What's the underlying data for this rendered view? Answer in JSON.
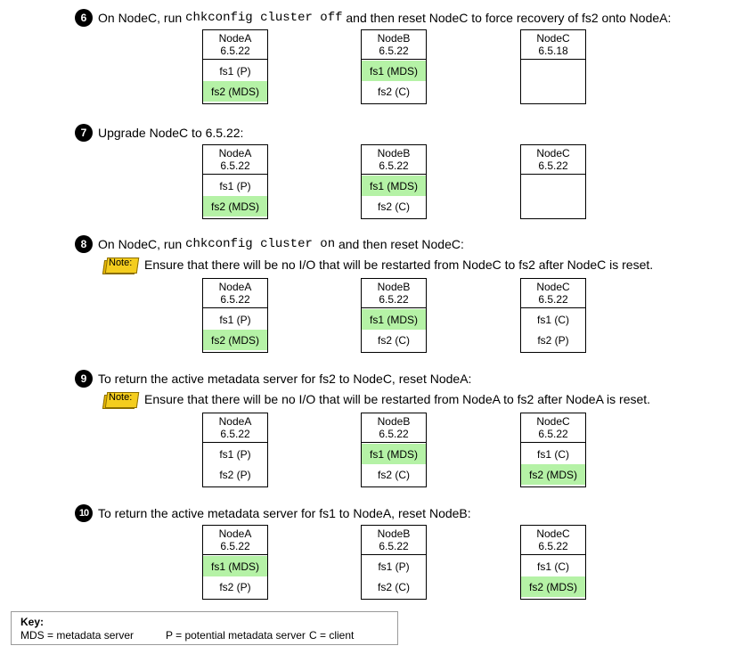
{
  "steps": [
    {
      "number": "6",
      "text_before": "On NodeC, run ",
      "command": "chkconfig cluster off",
      "text_after": " and then reset NodeC to force recovery of fs2 onto NodeA:",
      "note": "",
      "nodes": [
        {
          "name": "NodeA",
          "version": "6.5.22",
          "fs": [
            {
              "label": "fs1 (P)",
              "mds": false
            },
            {
              "label": "fs2 (MDS)",
              "mds": true
            }
          ]
        },
        {
          "name": "NodeB",
          "version": "6.5.22",
          "fs": [
            {
              "label": "fs1 (MDS)",
              "mds": true
            },
            {
              "label": "fs2 (C)",
              "mds": false
            }
          ]
        },
        {
          "name": "NodeC",
          "version": "6.5.18",
          "fs": []
        }
      ]
    },
    {
      "number": "7",
      "text_before": "Upgrade NodeC to 6.5.22:",
      "command": "",
      "text_after": "",
      "note": "",
      "nodes": [
        {
          "name": "NodeA",
          "version": "6.5.22",
          "fs": [
            {
              "label": "fs1 (P)",
              "mds": false
            },
            {
              "label": "fs2 (MDS)",
              "mds": true
            }
          ]
        },
        {
          "name": "NodeB",
          "version": "6.5.22",
          "fs": [
            {
              "label": "fs1 (MDS)",
              "mds": true
            },
            {
              "label": "fs2 (C)",
              "mds": false
            }
          ]
        },
        {
          "name": "NodeC",
          "version": "6.5.22",
          "fs": []
        }
      ]
    },
    {
      "number": "8",
      "text_before": "On NodeC, run ",
      "command": "chkconfig cluster on",
      "text_after": " and then reset NodeC:",
      "note_label": "Note:",
      "note": "Ensure that there will be no I/O that will be restarted from NodeC to fs2 after NodeC is reset.",
      "nodes": [
        {
          "name": "NodeA",
          "version": "6.5.22",
          "fs": [
            {
              "label": "fs1 (P)",
              "mds": false
            },
            {
              "label": "fs2 (MDS)",
              "mds": true
            }
          ]
        },
        {
          "name": "NodeB",
          "version": "6.5.22",
          "fs": [
            {
              "label": "fs1 (MDS)",
              "mds": true
            },
            {
              "label": "fs2 (C)",
              "mds": false
            }
          ]
        },
        {
          "name": "NodeC",
          "version": "6.5.22",
          "fs": [
            {
              "label": "fs1 (C)",
              "mds": false
            },
            {
              "label": "fs2 (P)",
              "mds": false
            }
          ]
        }
      ]
    },
    {
      "number": "9",
      "text_before": "To return the active metadata server for fs2 to NodeC, reset NodeA:",
      "command": "",
      "text_after": "",
      "note_label": "Note:",
      "note": "Ensure that there will be no I/O that will be restarted from NodeA to fs2 after NodeA is reset.",
      "nodes": [
        {
          "name": "NodeA",
          "version": "6.5.22",
          "fs": [
            {
              "label": "fs1 (P)",
              "mds": false
            },
            {
              "label": "fs2 (P)",
              "mds": false
            }
          ]
        },
        {
          "name": "NodeB",
          "version": "6.5.22",
          "fs": [
            {
              "label": "fs1 (MDS)",
              "mds": true
            },
            {
              "label": "fs2 (C)",
              "mds": false
            }
          ]
        },
        {
          "name": "NodeC",
          "version": "6.5.22",
          "fs": [
            {
              "label": "fs1 (C)",
              "mds": false
            },
            {
              "label": "fs2 (MDS)",
              "mds": true
            }
          ]
        }
      ]
    },
    {
      "number": "10",
      "text_before": "To return the active metadata server for fs1 to NodeA, reset NodeB:",
      "command": "",
      "text_after": "",
      "note": "",
      "nodes": [
        {
          "name": "NodeA",
          "version": "6.5.22",
          "fs": [
            {
              "label": "fs1 (MDS)",
              "mds": true
            },
            {
              "label": "fs2 (P)",
              "mds": false
            }
          ]
        },
        {
          "name": "NodeB",
          "version": "6.5.22",
          "fs": [
            {
              "label": "fs1 (P)",
              "mds": false
            },
            {
              "label": "fs2 (C)",
              "mds": false
            }
          ]
        },
        {
          "name": "NodeC",
          "version": "6.5.22",
          "fs": [
            {
              "label": "fs1 (C)",
              "mds": false
            },
            {
              "label": "fs2 (MDS)",
              "mds": true
            }
          ]
        }
      ]
    }
  ],
  "key": {
    "title": "Key:",
    "items": [
      "MDS = metadata server",
      "P = potential metadata server",
      "C = client"
    ]
  },
  "colors": {
    "mds_highlight": "#b5f2a6",
    "note_badge": "#f4cd1e"
  }
}
